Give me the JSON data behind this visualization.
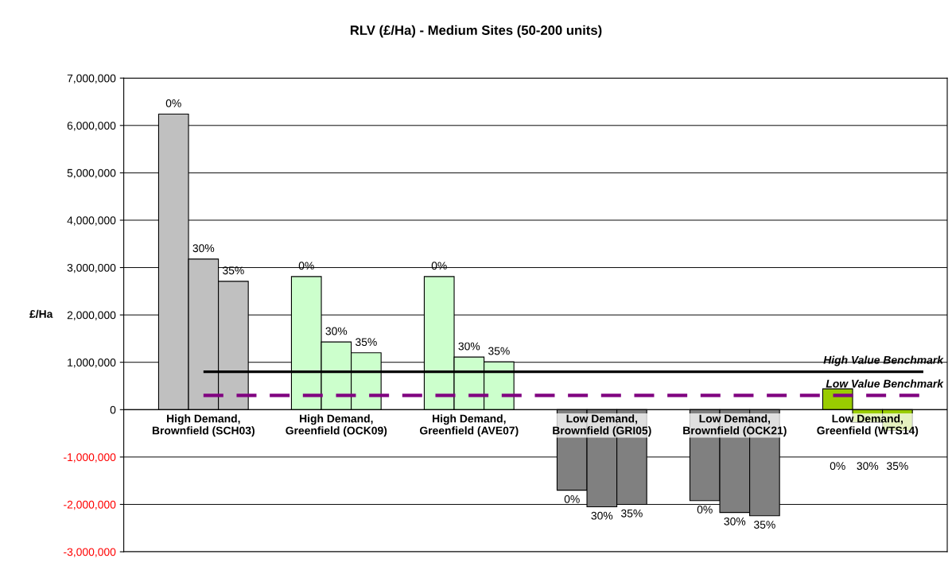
{
  "chart_data": {
    "type": "bar",
    "title": "RLV (£/Ha) - Medium Sites (50-200 units)",
    "ylabel": "£/Ha",
    "categories": [
      "High Demand,\nBrownfield (SCH03)",
      "High Demand,\nGreenfield (OCK09)",
      "High Demand,\nGreenfield (AVE07)",
      "Low Demand,\nBrownfield (GRI05)",
      "Low Demand,\nBrownfield (OCK21)",
      "Low Demand,\nGreenfield (WTS14)"
    ],
    "series": [
      {
        "name": "0%",
        "colors": [
          "#c0c0c0",
          "#ccffcc",
          "#ccffcc",
          "#808080",
          "#808080",
          "#99cc00"
        ],
        "values": [
          6240000,
          2810000,
          2810000,
          -1700000,
          -1920000,
          440000
        ]
      },
      {
        "name": "30%",
        "colors": [
          "#c0c0c0",
          "#ccffcc",
          "#ccffcc",
          "#808080",
          "#808080",
          "#99cc00"
        ],
        "values": [
          3180000,
          1430000,
          1110000,
          -2050000,
          -2170000,
          -270000
        ]
      },
      {
        "name": "35%",
        "colors": [
          "#c0c0c0",
          "#ccffcc",
          "#ccffcc",
          "#808080",
          "#808080",
          "#99cc00"
        ],
        "values": [
          2710000,
          1200000,
          1010000,
          -2000000,
          -2240000,
          -440000
        ]
      }
    ],
    "ylim": [
      -3000000,
      7000000
    ],
    "yticks": [
      {
        "value": -3000000,
        "label": "-3,000,000"
      },
      {
        "value": -2000000,
        "label": "-2,000,000"
      },
      {
        "value": -1000000,
        "label": "-1,000,000"
      },
      {
        "value": 0,
        "label": "0"
      },
      {
        "value": 1000000,
        "label": "1,000,000"
      },
      {
        "value": 2000000,
        "label": "2,000,000"
      },
      {
        "value": 3000000,
        "label": "3,000,000"
      },
      {
        "value": 4000000,
        "label": "4,000,000"
      },
      {
        "value": 5000000,
        "label": "5,000,000"
      },
      {
        "value": 6000000,
        "label": "6,000,000"
      },
      {
        "value": 7000000,
        "label": "7,000,000"
      }
    ],
    "grid": "y",
    "legend": false,
    "ref_lines": [
      {
        "axis": "y",
        "value": 800000,
        "label": "High Value Benchmark",
        "color": "#000000",
        "line_style": "solid"
      },
      {
        "axis": "y",
        "value": 300000,
        "label": "Low Value Benchmark",
        "color": "#800080",
        "line_style": "dashed"
      }
    ]
  }
}
